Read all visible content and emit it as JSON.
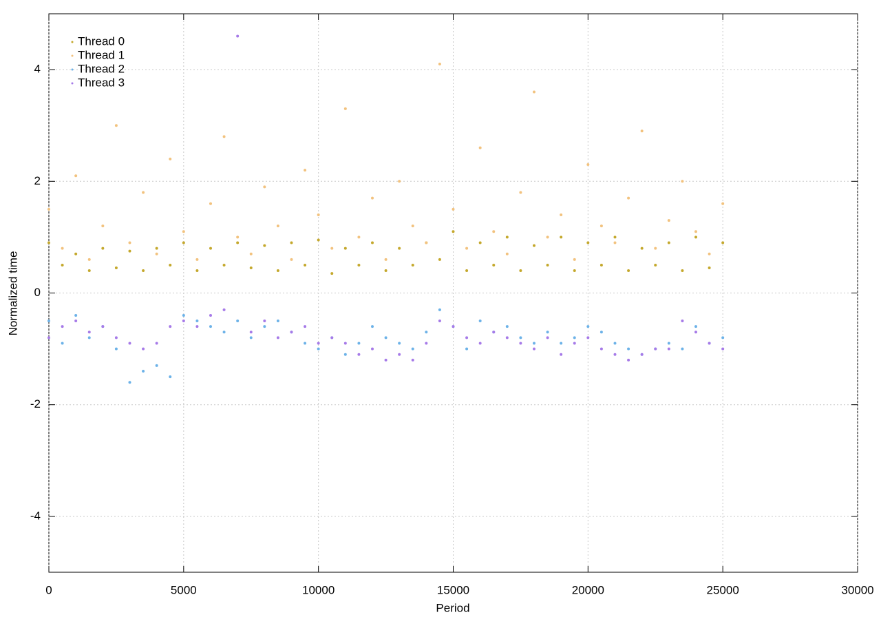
{
  "chart_data": {
    "type": "scatter",
    "xlabel": "Period",
    "ylabel": "Normalized time",
    "x": [
      0,
      500,
      1000,
      1500,
      2000,
      2500,
      3000,
      3500,
      4000,
      4500,
      5000,
      5500,
      6000,
      6500,
      7000,
      7500,
      8000,
      8500,
      9000,
      9500,
      10000,
      10500,
      11000,
      11500,
      12000,
      12500,
      13000,
      13500,
      14000,
      14500,
      15000,
      15500,
      16000,
      16500,
      17000,
      17500,
      18000,
      18500,
      19000,
      19500,
      20000,
      20500,
      21000,
      21500,
      22000,
      22500,
      23000,
      23500,
      24000,
      24500,
      25000
    ],
    "series": [
      {
        "name": "Thread 0",
        "color": "#c4a82c",
        "values": [
          0.9,
          0.5,
          0.7,
          0.4,
          0.8,
          0.45,
          0.75,
          0.4,
          0.8,
          0.5,
          0.9,
          0.4,
          0.8,
          0.5,
          0.9,
          0.45,
          0.85,
          0.4,
          0.9,
          0.5,
          0.95,
          0.35,
          0.8,
          0.5,
          0.9,
          0.4,
          0.8,
          0.5,
          0.9,
          0.6,
          1.1,
          0.4,
          0.9,
          0.5,
          1.0,
          0.4,
          0.85,
          0.5,
          1.0,
          0.4,
          0.9,
          0.5,
          1.0,
          0.4,
          0.8,
          0.5,
          0.9,
          0.4,
          1.0,
          0.45,
          0.9
        ]
      },
      {
        "name": "Thread 1",
        "color": "#f2c27e",
        "values": [
          1.5,
          0.8,
          2.1,
          0.6,
          1.2,
          3.0,
          0.9,
          1.8,
          0.7,
          2.4,
          1.1,
          0.6,
          1.6,
          2.8,
          1.0,
          0.7,
          1.9,
          1.2,
          0.6,
          2.2,
          1.4,
          0.8,
          3.3,
          1.0,
          1.7,
          0.6,
          2.0,
          1.2,
          0.9,
          4.1,
          1.5,
          0.8,
          2.6,
          1.1,
          0.7,
          1.8,
          3.6,
          1.0,
          1.4,
          0.6,
          2.3,
          1.2,
          0.9,
          1.7,
          2.9,
          0.8,
          1.3,
          2.0,
          1.1,
          0.7,
          1.6
        ]
      },
      {
        "name": "Thread 2",
        "color": "#6cb2e8",
        "values": [
          -0.5,
          -0.9,
          -0.4,
          -0.8,
          -0.6,
          -1.0,
          -1.6,
          -1.4,
          -1.3,
          -1.5,
          -0.4,
          -0.5,
          -0.6,
          -0.7,
          -0.5,
          -0.8,
          -0.6,
          -0.5,
          -0.7,
          -0.9,
          -1.0,
          -0.8,
          -1.1,
          -0.9,
          -0.6,
          -0.8,
          -0.9,
          -1.0,
          -0.7,
          -0.3,
          -0.6,
          -1.0,
          -0.5,
          -0.7,
          -0.6,
          -0.8,
          -0.9,
          -0.7,
          -0.9,
          -0.8,
          -0.6,
          -0.7,
          -0.9,
          -1.0,
          -1.1,
          -1.0,
          -0.9,
          -1.0,
          -0.6,
          -0.9,
          -0.8
        ]
      },
      {
        "name": "Thread 3",
        "color": "#a67ae8",
        "values": [
          -0.8,
          -0.6,
          -0.5,
          -0.7,
          -0.6,
          -0.8,
          -0.9,
          -1.0,
          -0.9,
          -0.6,
          -0.5,
          -0.6,
          -0.4,
          -0.3,
          4.6,
          -0.7,
          -0.5,
          -0.8,
          -0.7,
          -0.6,
          -0.9,
          -0.8,
          -0.9,
          -1.1,
          -1.0,
          -1.2,
          -1.1,
          -1.2,
          -0.9,
          -0.5,
          -0.6,
          -0.8,
          -0.9,
          -0.7,
          -0.8,
          -0.9,
          -1.0,
          -0.8,
          -1.1,
          -0.9,
          -0.8,
          -1.0,
          -1.1,
          -1.2,
          -1.1,
          -1.0,
          -1.0,
          -0.5,
          -0.7,
          -0.9,
          -1.0
        ]
      }
    ],
    "xlim": [
      0,
      30000
    ],
    "ylim": [
      -5,
      5
    ],
    "xticks": [
      0,
      5000,
      10000,
      15000,
      20000,
      25000,
      30000
    ],
    "yticks": [
      -4,
      -2,
      0,
      2,
      4
    ],
    "grid": true,
    "legend": "top-left"
  }
}
